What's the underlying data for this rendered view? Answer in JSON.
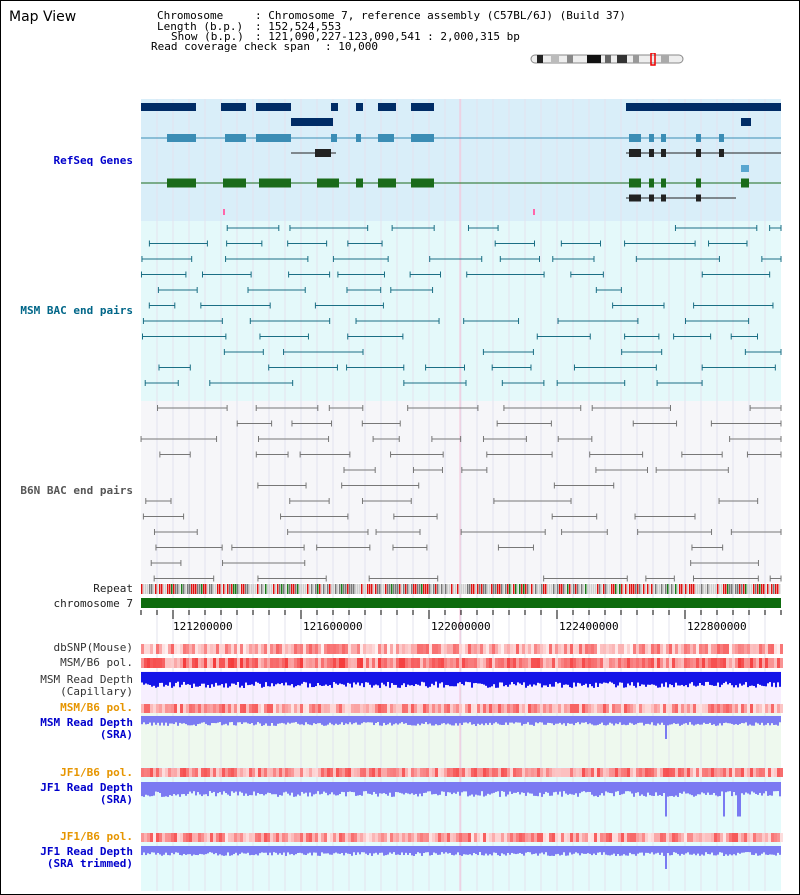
{
  "app": {
    "title": "Map View"
  },
  "info": {
    "chromosome_key": "Chromosome",
    "chromosome_value": ": Chromosome 7, reference assembly (C57BL/6J) (Build 37)",
    "length_key": "Length (b.p.)",
    "length_value": ": 152,524,553",
    "show_key": "Show (b.p.)",
    "show_value": ": 121,090,227-123,090,541 : 2,000,315 bp",
    "coverage_key": "Read coverage check span",
    "coverage_value": ": 10,000"
  },
  "tracks": {
    "refseq": "RefSeq Genes",
    "msm_bac": "MSM BAC end pairs",
    "b6n_bac": "B6N BAC end pairs",
    "repeat": "Repeat",
    "chromosome": "chromosome 7",
    "dbsnp": "dbSNP(Mouse)",
    "msm_b6_pol": "MSM/B6 pol.",
    "msm_read_depth_cap_1": "MSM Read Depth",
    "msm_read_depth_cap_2": "(Capillary)",
    "msm_b6_pol_2": "MSM/B6 pol.",
    "msm_read_depth_sra_1": "MSM Read Depth",
    "msm_read_depth_sra_2": "(SRA)",
    "jf1_b6_pol": "JF1/B6 pol.",
    "jf1_read_depth_sra_1": "JF1 Read Depth",
    "jf1_read_depth_sra_2": "(SRA)",
    "jf1_b6_pol_2": "JF1/B6 pol.",
    "jf1_read_depth_trim_1": "JF1 Read Depth",
    "jf1_read_depth_trim_2": "(SRA trimmed)"
  },
  "ruler": {
    "labels": [
      "121200000",
      "121600000",
      "122000000",
      "122400000",
      "122800000"
    ]
  },
  "colors": {
    "refseq_bg": "#d9eef9",
    "msm_bg": "#e4f9fa",
    "b6n_bg": "#f6f6f9",
    "gene_dark": "#002c66",
    "gene_mid": "#3b8db5",
    "gene_green": "#1a6b1a",
    "msm_pair": "#1b6f85",
    "b6n_pair": "#777777",
    "chromosome_bar": "#0e6b0e",
    "depth_blue": "#1414e8",
    "depth_light": "#7a7af2",
    "depth_bg_green": "#eef9ee",
    "pol_red": "#ff7373"
  }
}
